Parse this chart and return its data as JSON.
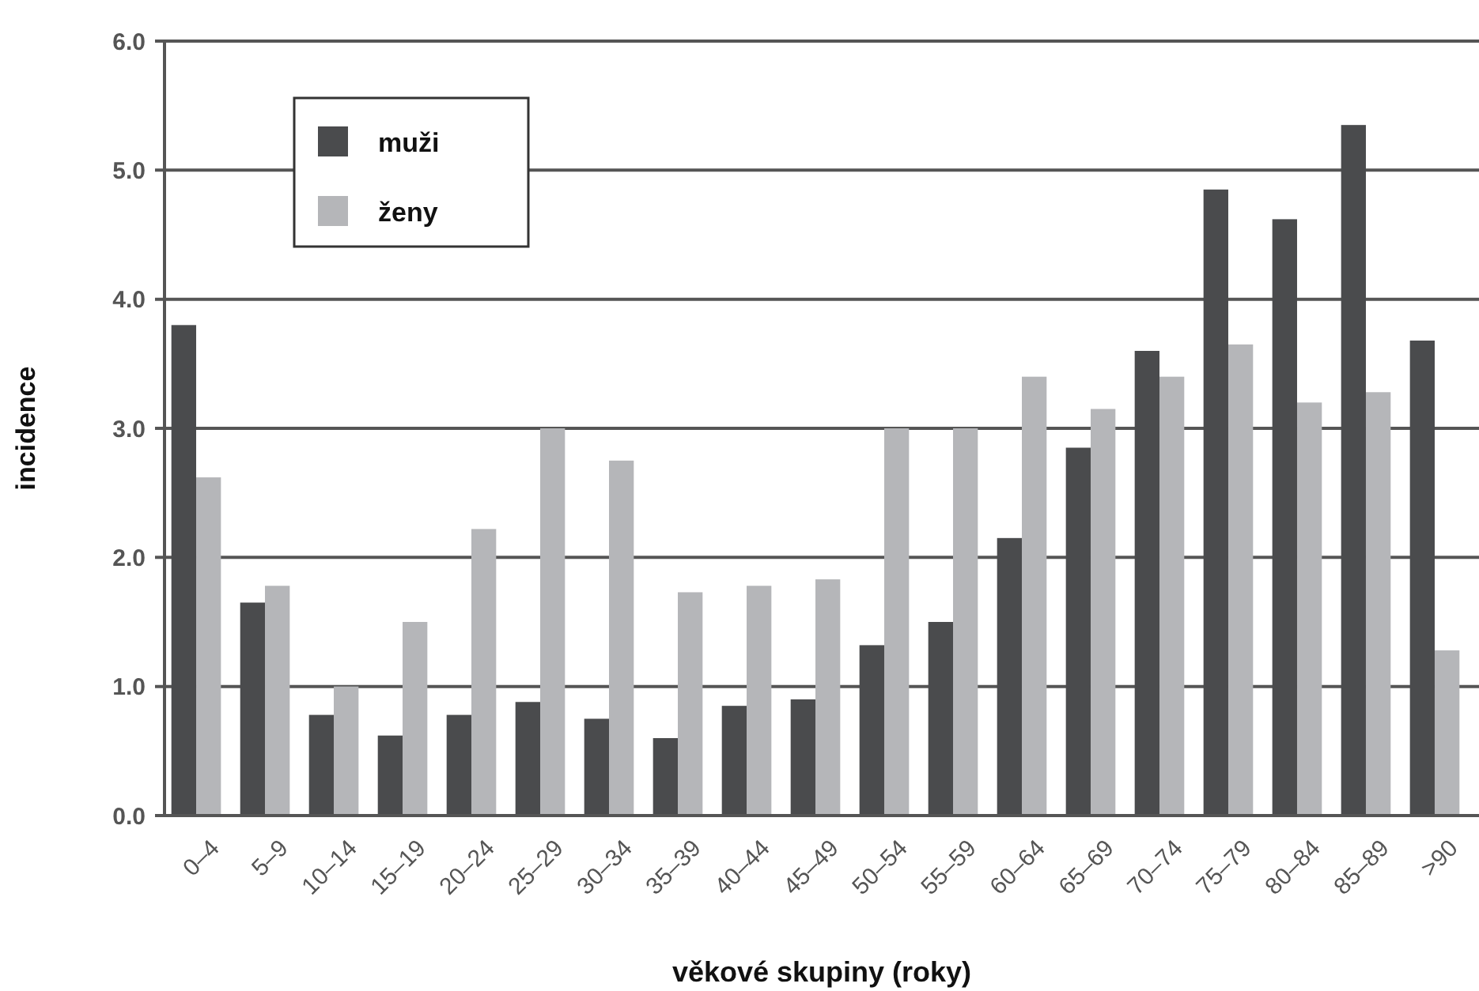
{
  "chart_data": {
    "type": "bar",
    "xlabel": "věkové skupiny (roky)",
    "ylabel": "incidence",
    "categories": [
      "0–4",
      "5–9",
      "10–14",
      "15–19",
      "20–24",
      "25–29",
      "30–34",
      "35–39",
      "40–44",
      "45–49",
      "50–54",
      "55–59",
      "60–64",
      "65–69",
      "70–74",
      "75–79",
      "80–84",
      "85–89",
      ">90"
    ],
    "series": [
      {
        "name": "muži",
        "color": "#4a4b4d",
        "values": [
          3.8,
          1.65,
          0.78,
          0.62,
          0.78,
          0.88,
          0.75,
          0.6,
          0.85,
          0.9,
          1.32,
          1.5,
          2.15,
          2.85,
          3.6,
          4.85,
          4.62,
          5.35,
          3.68
        ]
      },
      {
        "name": "ženy",
        "color": "#b5b6b9",
        "values": [
          2.62,
          1.78,
          1.0,
          1.5,
          2.22,
          3.0,
          2.75,
          1.73,
          1.78,
          1.83,
          3.0,
          3.0,
          3.4,
          3.15,
          3.4,
          3.65,
          3.2,
          3.28,
          1.28
        ]
      }
    ],
    "ylim": [
      0,
      6
    ],
    "yticks": [
      {
        "value": 0,
        "label": "0.0"
      },
      {
        "value": 1,
        "label": "1.0"
      },
      {
        "value": 2,
        "label": "2.0"
      },
      {
        "value": 3,
        "label": "3.0"
      },
      {
        "value": 4,
        "label": "4.0"
      },
      {
        "value": 5,
        "label": "5.0"
      },
      {
        "value": 6,
        "label": "6.0"
      }
    ],
    "grid": "y",
    "legend": "top left"
  }
}
